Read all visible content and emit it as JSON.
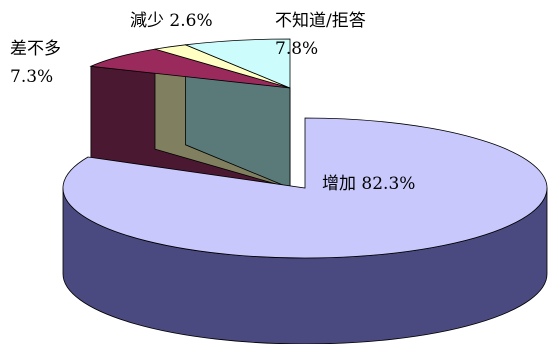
{
  "chart_data": {
    "type": "pie",
    "style": "3d-exploded",
    "slices": [
      {
        "label": "增加",
        "value": 82.3,
        "display": "增加 82.3%",
        "color": "#c8c8fc",
        "side_color": "#4a4a80"
      },
      {
        "label": "差不多",
        "value": 7.3,
        "display_name": "差不多",
        "display_value": "7.3%",
        "color": "#9b2a5c",
        "side_color": "#4a1830"
      },
      {
        "label": "减少",
        "value": 2.6,
        "display": "減少 2.6%",
        "color": "#ffffc4",
        "side_color": "#808060"
      },
      {
        "label": "不知道/拒答",
        "value": 7.8,
        "display_name": "不知道/拒答",
        "display_value": "7.8%",
        "color": "#ccfcfc",
        "side_color": "#5a7a7a"
      }
    ]
  }
}
